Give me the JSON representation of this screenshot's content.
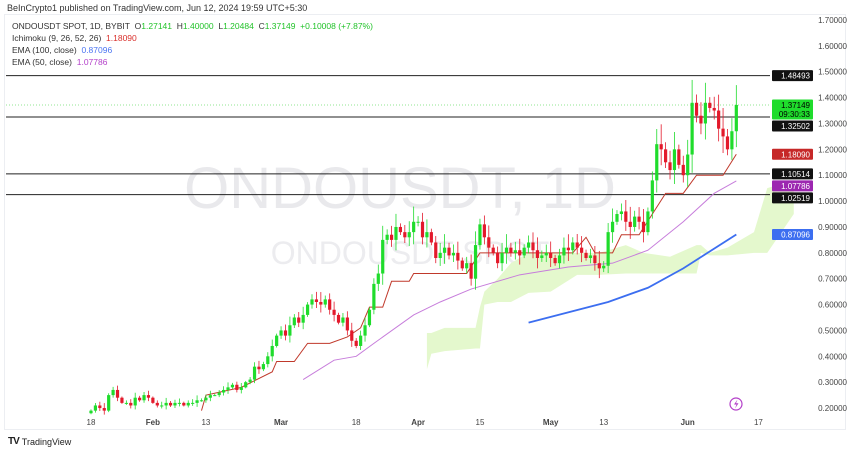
{
  "publish_line": "BeInCrypto1 published on TradingView.com, Jun 12, 2024 19:59 UTC+5:30",
  "legend": {
    "symbol": "ONDOUSDT SPOT, 1D, BYBIT",
    "o_label": "O",
    "o": "1.27141",
    "h_label": "H",
    "h": "1.40000",
    "l_label": "L",
    "l": "1.20484",
    "c_label": "C",
    "c": "1.37149",
    "change": "+0.10008 (+7.87%)",
    "ichimoku_label": "Ichimoku (9, 26, 52, 26)",
    "ichimoku_value": "1.18090",
    "ema100_label": "EMA (100, close)",
    "ema100_value": "0.87096",
    "ema50_label": "EMA (50, close)",
    "ema50_value": "1.07786"
  },
  "watermark": {
    "main": "ONDOUSDT, 1D",
    "sub": "ONDOUSDT SPOT"
  },
  "footer": {
    "logo": "TV",
    "brand": "TradingView"
  },
  "colors": {
    "up": "#1fdc2c",
    "down": "#e3192b",
    "ichimoku": "#c0392b",
    "ema50": "#c77ddb",
    "ema100": "#3c6ef0",
    "cloud": "#e4f8cd",
    "level": "#222222"
  },
  "chart_data": {
    "type": "candlestick",
    "start_date": "2024-01-18",
    "closes": [
      0.19,
      0.21,
      0.2,
      0.19,
      0.25,
      0.27,
      0.24,
      0.22,
      0.22,
      0.21,
      0.24,
      0.23,
      0.25,
      0.24,
      0.22,
      0.21,
      0.21,
      0.22,
      0.21,
      0.22,
      0.22,
      0.21,
      0.22,
      0.22,
      0.23,
      0.23,
      0.24,
      0.25,
      0.25,
      0.26,
      0.27,
      0.28,
      0.29,
      0.27,
      0.28,
      0.3,
      0.31,
      0.36,
      0.35,
      0.37,
      0.4,
      0.44,
      0.48,
      0.5,
      0.48,
      0.52,
      0.55,
      0.53,
      0.56,
      0.6,
      0.62,
      0.61,
      0.6,
      0.62,
      0.58,
      0.56,
      0.53,
      0.55,
      0.5,
      0.46,
      0.44,
      0.48,
      0.52,
      0.58,
      0.68,
      0.72,
      0.85,
      0.87,
      0.85,
      0.9,
      0.88,
      0.86,
      0.88,
      0.92,
      0.92,
      0.86,
      0.88,
      0.84,
      0.78,
      0.8,
      0.82,
      0.79,
      0.8,
      0.77,
      0.74,
      0.76,
      0.7,
      0.83,
      0.91,
      0.86,
      0.82,
      0.8,
      0.76,
      0.8,
      0.82,
      0.8,
      0.81,
      0.79,
      0.82,
      0.84,
      0.81,
      0.78,
      0.79,
      0.8,
      0.78,
      0.76,
      0.79,
      0.82,
      0.81,
      0.84,
      0.82,
      0.8,
      0.78,
      0.79,
      0.76,
      0.74,
      0.75,
      0.88,
      0.92,
      0.95,
      0.96,
      0.92,
      0.9,
      0.94,
      0.92,
      0.88,
      0.96,
      1.08,
      1.22,
      1.2,
      1.15,
      1.12,
      1.2,
      1.14,
      1.1,
      1.18,
      1.38,
      1.33,
      1.3,
      1.38,
      1.36,
      1.35,
      1.28,
      1.25,
      1.2,
      1.27,
      1.37149
    ],
    "ichimoku_line": [
      [
        "2024-02-12",
        0.19
      ],
      [
        "2024-02-13",
        0.25
      ],
      [
        "2024-02-21",
        0.28
      ],
      [
        "2024-02-28",
        0.34
      ],
      [
        "2024-02-29",
        0.38
      ],
      [
        "2024-03-04",
        0.38
      ],
      [
        "2024-03-07",
        0.45
      ],
      [
        "2024-03-12",
        0.45
      ],
      [
        "2024-03-16",
        0.475
      ],
      [
        "2024-03-19",
        0.51
      ],
      [
        "2024-03-21",
        0.59
      ],
      [
        "2024-03-24",
        0.59
      ],
      [
        "2024-03-26",
        0.69
      ],
      [
        "2024-03-30",
        0.69
      ],
      [
        "2024-03-31",
        0.72
      ],
      [
        "2024-04-12",
        0.72
      ],
      [
        "2024-04-15",
        0.8
      ],
      [
        "2024-05-06",
        0.8
      ],
      [
        "2024-05-09",
        0.86
      ],
      [
        "2024-05-11",
        0.8
      ],
      [
        "2024-05-15",
        0.8
      ],
      [
        "2024-05-17",
        0.87
      ],
      [
        "2024-05-21",
        0.87
      ],
      [
        "2024-05-27",
        1.03
      ],
      [
        "2024-05-31",
        1.03
      ],
      [
        "2024-06-03",
        1.1
      ],
      [
        "2024-06-09",
        1.1
      ],
      [
        "2024-06-12",
        1.1809
      ]
    ],
    "ema50": [
      [
        "2024-03-06",
        0.31
      ],
      [
        "2024-03-13",
        0.385
      ],
      [
        "2024-03-18",
        0.4
      ],
      [
        "2024-03-22",
        0.45
      ],
      [
        "2024-03-31",
        0.56
      ],
      [
        "2024-04-06",
        0.61
      ],
      [
        "2024-04-13",
        0.66
      ],
      [
        "2024-04-24",
        0.715
      ],
      [
        "2024-05-05",
        0.745
      ],
      [
        "2024-05-15",
        0.76
      ],
      [
        "2024-05-23",
        0.81
      ],
      [
        "2024-05-31",
        0.92
      ],
      [
        "2024-06-07",
        1.03
      ],
      [
        "2024-06-12",
        1.07786
      ]
    ],
    "ema100": [
      [
        "2024-04-26",
        0.53
      ],
      [
        "2024-05-14",
        0.61
      ],
      [
        "2024-05-23",
        0.665
      ],
      [
        "2024-05-31",
        0.74
      ],
      [
        "2024-06-12",
        0.87096
      ]
    ],
    "cloud": [
      [
        "2024-04-03",
        0.49,
        0.35
      ],
      [
        "2024-04-04",
        0.49,
        0.41
      ],
      [
        "2024-04-07",
        0.51,
        0.42
      ],
      [
        "2024-04-14",
        0.51,
        0.43
      ],
      [
        "2024-04-15",
        0.59,
        0.43
      ],
      [
        "2024-04-16",
        0.65,
        0.6
      ],
      [
        "2024-04-19",
        0.7,
        0.61
      ],
      [
        "2024-04-22",
        0.76,
        0.61
      ],
      [
        "2024-04-26",
        0.8,
        0.645
      ],
      [
        "2024-05-01",
        0.8,
        0.65
      ],
      [
        "2024-05-07",
        0.8,
        0.715
      ],
      [
        "2024-05-12",
        0.8,
        0.715
      ],
      [
        "2024-05-18",
        0.83,
        0.72
      ],
      [
        "2024-05-22",
        0.8,
        0.72
      ],
      [
        "2024-05-28",
        0.785,
        0.72
      ],
      [
        "2024-06-03",
        0.83,
        0.72
      ],
      [
        "2024-06-04",
        0.83,
        0.8
      ],
      [
        "2024-06-06",
        0.8,
        0.79
      ],
      [
        "2024-06-10",
        0.82,
        0.79
      ],
      [
        "2024-06-16",
        0.88,
        0.8
      ],
      [
        "2024-06-19",
        1.05,
        0.8
      ],
      [
        "2024-06-25",
        1.08,
        0.95
      ]
    ],
    "levels": [
      1.48493,
      1.32502,
      1.10514,
      1.02519
    ],
    "current_price": 1.37149,
    "countdown": "09:30:33",
    "price_labels": [
      {
        "text": "1.48493",
        "value": 1.48493,
        "color": "#111111"
      },
      {
        "text": "1.37149",
        "value": 1.37149,
        "color": "#1fdc2c",
        "sub": "09:30:33"
      },
      {
        "text": "1.32502",
        "value": 1.32502,
        "color": "#111111"
      },
      {
        "text": "1.18090",
        "value": 1.1809,
        "color": "#c62828"
      },
      {
        "text": "1.10514",
        "value": 1.10514,
        "color": "#111111"
      },
      {
        "text": "1.07786",
        "value": 1.07786,
        "color": "#9c27b0"
      },
      {
        "text": "1.02519",
        "value": 1.02519,
        "color": "#111111"
      },
      {
        "text": "0.87096",
        "value": 0.87096,
        "color": "#3c6ef0"
      }
    ],
    "y_ticks": [
      "1.70000",
      "1.60000",
      "1.50000",
      "1.40000",
      "1.30000",
      "1.20000",
      "1.10000",
      "1.00000",
      "0.90000",
      "0.80000",
      "0.70000",
      "0.60000",
      "0.50000",
      "0.40000",
      "0.30000",
      "0.20000"
    ],
    "ylim": [
      0.2,
      1.7
    ],
    "x_ticks": [
      [
        "2024-01-18",
        "18"
      ],
      [
        "2024-02-01",
        "Feb"
      ],
      [
        "2024-02-13",
        "13"
      ],
      [
        "2024-03-01",
        "Mar"
      ],
      [
        "2024-03-18",
        "18"
      ],
      [
        "2024-04-01",
        "Apr"
      ],
      [
        "2024-04-15",
        "15"
      ],
      [
        "2024-05-01",
        "May"
      ],
      [
        "2024-05-13",
        "13"
      ],
      [
        "2024-06-01",
        "Jun"
      ],
      [
        "2024-06-17",
        "17"
      ]
    ],
    "grid": false
  }
}
